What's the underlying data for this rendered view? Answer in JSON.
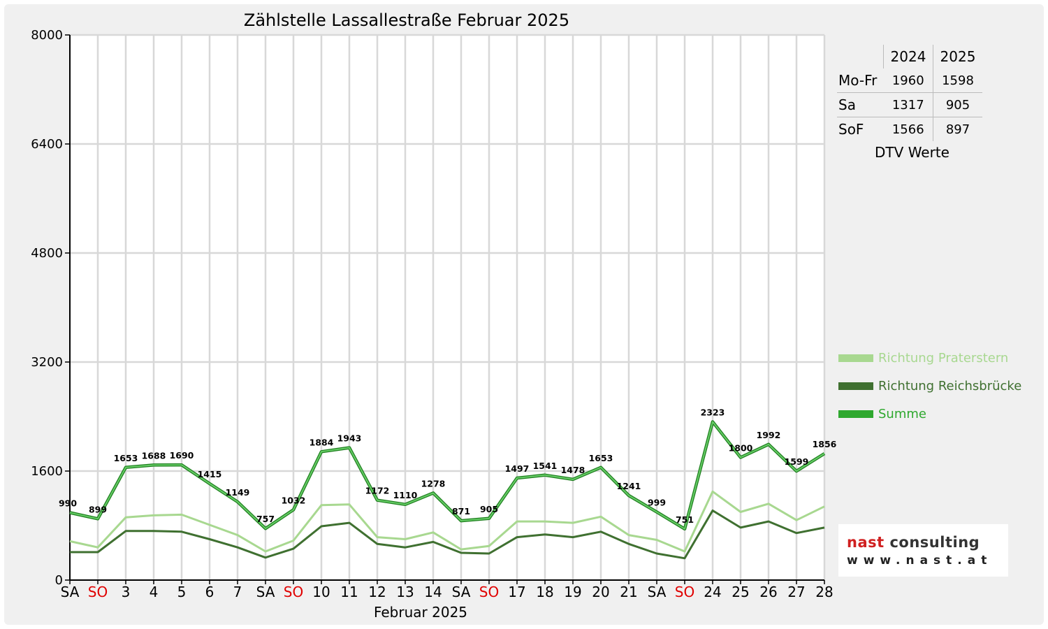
{
  "chart_data": {
    "type": "line",
    "title": "Zählstelle Lassallestraße Februar 2025",
    "xlabel": "Februar 2025",
    "ylabel": "",
    "ylim": [
      0,
      8000
    ],
    "yticks": [
      0,
      1600,
      3200,
      4800,
      6400,
      8000
    ],
    "grid": true,
    "legend_position": "right",
    "categories": [
      "SA",
      "SO",
      "3",
      "4",
      "5",
      "6",
      "7",
      "SA",
      "SO",
      "10",
      "11",
      "12",
      "13",
      "14",
      "SA",
      "SO",
      "17",
      "18",
      "19",
      "20",
      "21",
      "SA",
      "SO",
      "24",
      "25",
      "26",
      "27",
      "28"
    ],
    "sunday_indices": [
      1,
      8,
      15,
      22
    ],
    "series": [
      {
        "name": "Richtung Praterstern",
        "color": "#a8d890",
        "values": [
          570,
          480,
          920,
          950,
          960,
          810,
          660,
          420,
          580,
          1100,
          1110,
          630,
          600,
          700,
          450,
          500,
          860,
          860,
          840,
          930,
          660,
          590,
          420,
          1300,
          1000,
          1120,
          880,
          1080
        ]
      },
      {
        "name": "Richtung Reichsbrücke",
        "color": "#3f7030",
        "values": [
          410,
          410,
          720,
          720,
          710,
          600,
          480,
          330,
          460,
          790,
          840,
          530,
          480,
          560,
          400,
          390,
          630,
          670,
          630,
          710,
          530,
          390,
          320,
          1020,
          770,
          860,
          690,
          770
        ]
      },
      {
        "name": "Summe",
        "color": "#2ea82e",
        "values": [
          990,
          899,
          1653,
          1688,
          1690,
          1415,
          1149,
          757,
          1032,
          1884,
          1943,
          1172,
          1110,
          1278,
          871,
          905,
          1497,
          1541,
          1478,
          1653,
          1241,
          999,
          751,
          2323,
          1800,
          1992,
          1599,
          1856
        ],
        "labels": true
      }
    ]
  },
  "dtv_table": {
    "headers": [
      "",
      "2024",
      "2025"
    ],
    "rows": [
      {
        "label": "Mo-Fr",
        "v2024": "1960",
        "v2025": "1598"
      },
      {
        "label": "Sa",
        "v2024": "1317",
        "v2025": "905"
      },
      {
        "label": "SoF",
        "v2024": "1566",
        "v2025": "897"
      }
    ],
    "caption": "DTV Werte"
  },
  "logo": {
    "line1_part1": "nast",
    "line1_part2": " consulting",
    "line2": "www.nast.at",
    "color_nast": "#d02020",
    "color_consulting": "#333333"
  }
}
